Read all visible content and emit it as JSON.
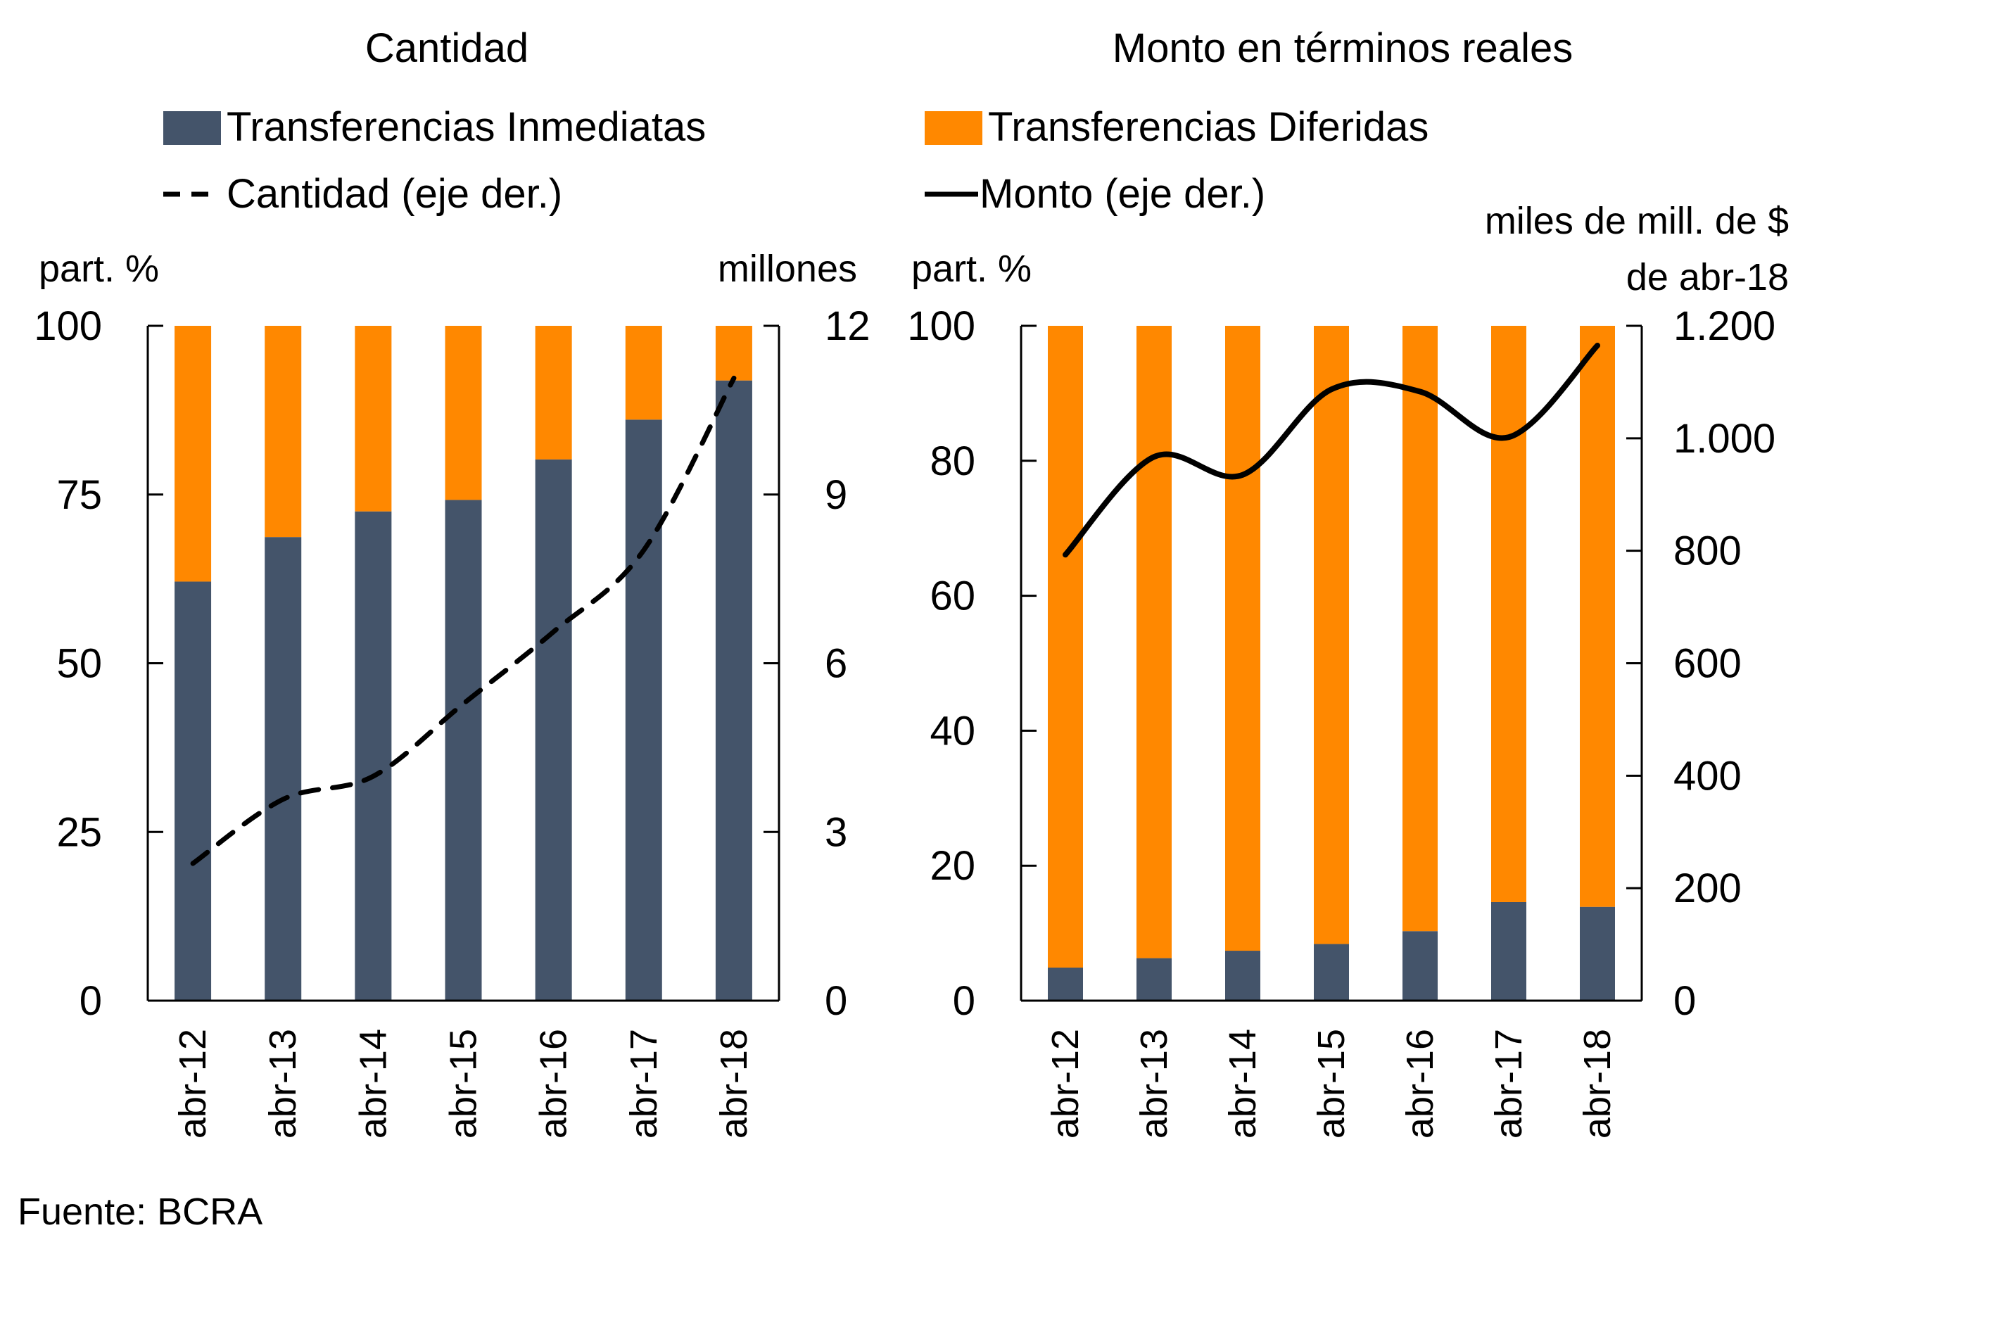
{
  "colors": {
    "inmediatas": "#44546A",
    "diferidas": "#FF8800",
    "line": "#000000"
  },
  "legend": {
    "inmediatas": "Transferencias Inmediatas",
    "diferidas": "Transferencias Diferidas",
    "cantidad": "Cantidad (eje der.)",
    "monto": "Monto (eje der.)"
  },
  "source": "Fuente: BCRA",
  "chart_data": [
    {
      "type": "bar",
      "stacked": true,
      "title": "Cantidad",
      "categories": [
        "abr-12",
        "abr-13",
        "abr-14",
        "abr-15",
        "abr-16",
        "abr-17",
        "abr-18"
      ],
      "ylabel_left": "part. %",
      "ylabel_right": "millones",
      "ylim_left": [
        0,
        100
      ],
      "yticks_left": [
        "0",
        "25",
        "50",
        "75",
        "100"
      ],
      "ylim_right": [
        0,
        12
      ],
      "yticks_right": [
        "0",
        "3",
        "6",
        "9",
        "12"
      ],
      "series": [
        {
          "name": "Transferencias Inmediatas",
          "axis": "left",
          "kind": "bar",
          "values": [
            62.1,
            68.7,
            72.5,
            74.2,
            80.2,
            86.1,
            91.9
          ]
        },
        {
          "name": "Transferencias Diferidas",
          "axis": "left",
          "kind": "bar",
          "values": [
            37.9,
            31.3,
            27.5,
            25.8,
            19.8,
            13.9,
            8.1
          ]
        },
        {
          "name": "Cantidad (eje der.)",
          "axis": "right",
          "kind": "line-dashed",
          "values": [
            2.44,
            3.58,
            3.99,
            5.28,
            6.56,
            8.01,
            11.07
          ]
        }
      ],
      "grid": false
    },
    {
      "type": "bar",
      "stacked": true,
      "title": "Monto en términos reales",
      "categories": [
        "abr-12",
        "abr-13",
        "abr-14",
        "abr-15",
        "abr-16",
        "abr-17",
        "abr-18"
      ],
      "ylabel_left": "part. %",
      "ylabel_right_1": "miles de mill. de $",
      "ylabel_right_2": "de abr-18",
      "ylim_left": [
        0,
        100
      ],
      "yticks_left": [
        "0",
        "20",
        "40",
        "60",
        "80",
        "100"
      ],
      "ylim_right": [
        0,
        1200
      ],
      "yticks_right": [
        "0",
        "200",
        "400",
        "600",
        "800",
        "1.000",
        "1.200"
      ],
      "series": [
        {
          "name": "Transferencias Inmediatas",
          "axis": "left",
          "kind": "bar",
          "values": [
            4.9,
            6.3,
            7.4,
            8.4,
            10.3,
            14.6,
            13.9
          ]
        },
        {
          "name": "Transferencias Diferidas",
          "axis": "left",
          "kind": "bar",
          "values": [
            95.1,
            93.7,
            92.6,
            91.6,
            89.7,
            85.4,
            86.1
          ]
        },
        {
          "name": "Monto (eje der.)",
          "axis": "right",
          "kind": "line-smooth",
          "values": [
            793,
            967,
            935,
            1087,
            1083,
            1002,
            1165
          ]
        }
      ],
      "grid": false
    }
  ]
}
